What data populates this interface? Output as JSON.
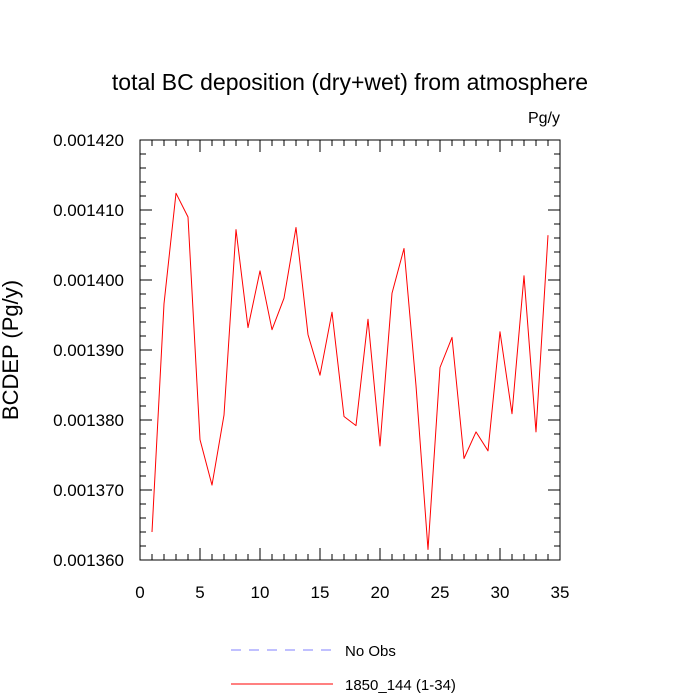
{
  "chart_data": {
    "type": "line",
    "title": "total BC deposition (dry+wet) from atmosphere",
    "units": "Pg/y",
    "xlabel": "",
    "ylabel": "BCDEP  (Pg/y)",
    "xlim": [
      0,
      35
    ],
    "ylim": [
      0.00136,
      0.00142
    ],
    "x_ticks": [
      0,
      5,
      10,
      15,
      20,
      25,
      30,
      35
    ],
    "x_tick_labels": [
      "0",
      "5",
      "10",
      "15",
      "20",
      "25",
      "30",
      "35"
    ],
    "y_ticks": [
      0.00136,
      0.00137,
      0.00138,
      0.00139,
      0.0014,
      0.00141,
      0.00142
    ],
    "y_tick_labels": [
      "0.001360",
      "0.001370",
      "0.001380",
      "0.001390",
      "0.001400",
      "0.001410",
      "0.001420"
    ],
    "grid": false,
    "legend_position": "bottom",
    "series": [
      {
        "name": "1850_144 (1-34)",
        "color": "#ff0000",
        "line_style": "solid",
        "x": [
          1,
          2,
          3,
          4,
          5,
          6,
          7,
          8,
          9,
          10,
          11,
          12,
          13,
          14,
          15,
          16,
          17,
          18,
          19,
          20,
          21,
          22,
          23,
          24,
          25,
          26,
          27,
          28,
          29,
          30,
          31,
          32,
          33,
          34
        ],
        "y": [
          0.001364,
          0.0013966,
          0.0014124,
          0.001409,
          0.0013772,
          0.0013707,
          0.0013807,
          0.0014072,
          0.0013932,
          0.0014013,
          0.0013929,
          0.0013974,
          0.0014075,
          0.0013922,
          0.0013864,
          0.0013954,
          0.0013805,
          0.0013792,
          0.0013944,
          0.0013763,
          0.0013981,
          0.0014045,
          0.0013849,
          0.0013615,
          0.0013875,
          0.0013918,
          0.0013745,
          0.0013783,
          0.0013756,
          0.0013926,
          0.0013809,
          0.0014006,
          0.0013783,
          0.0014064
        ]
      }
    ],
    "legend": [
      {
        "label": "No Obs",
        "color": "#8080ff",
        "line_style": "dashed"
      },
      {
        "label": "1850_144 (1-34)",
        "color": "#ff0000",
        "line_style": "solid"
      }
    ]
  }
}
